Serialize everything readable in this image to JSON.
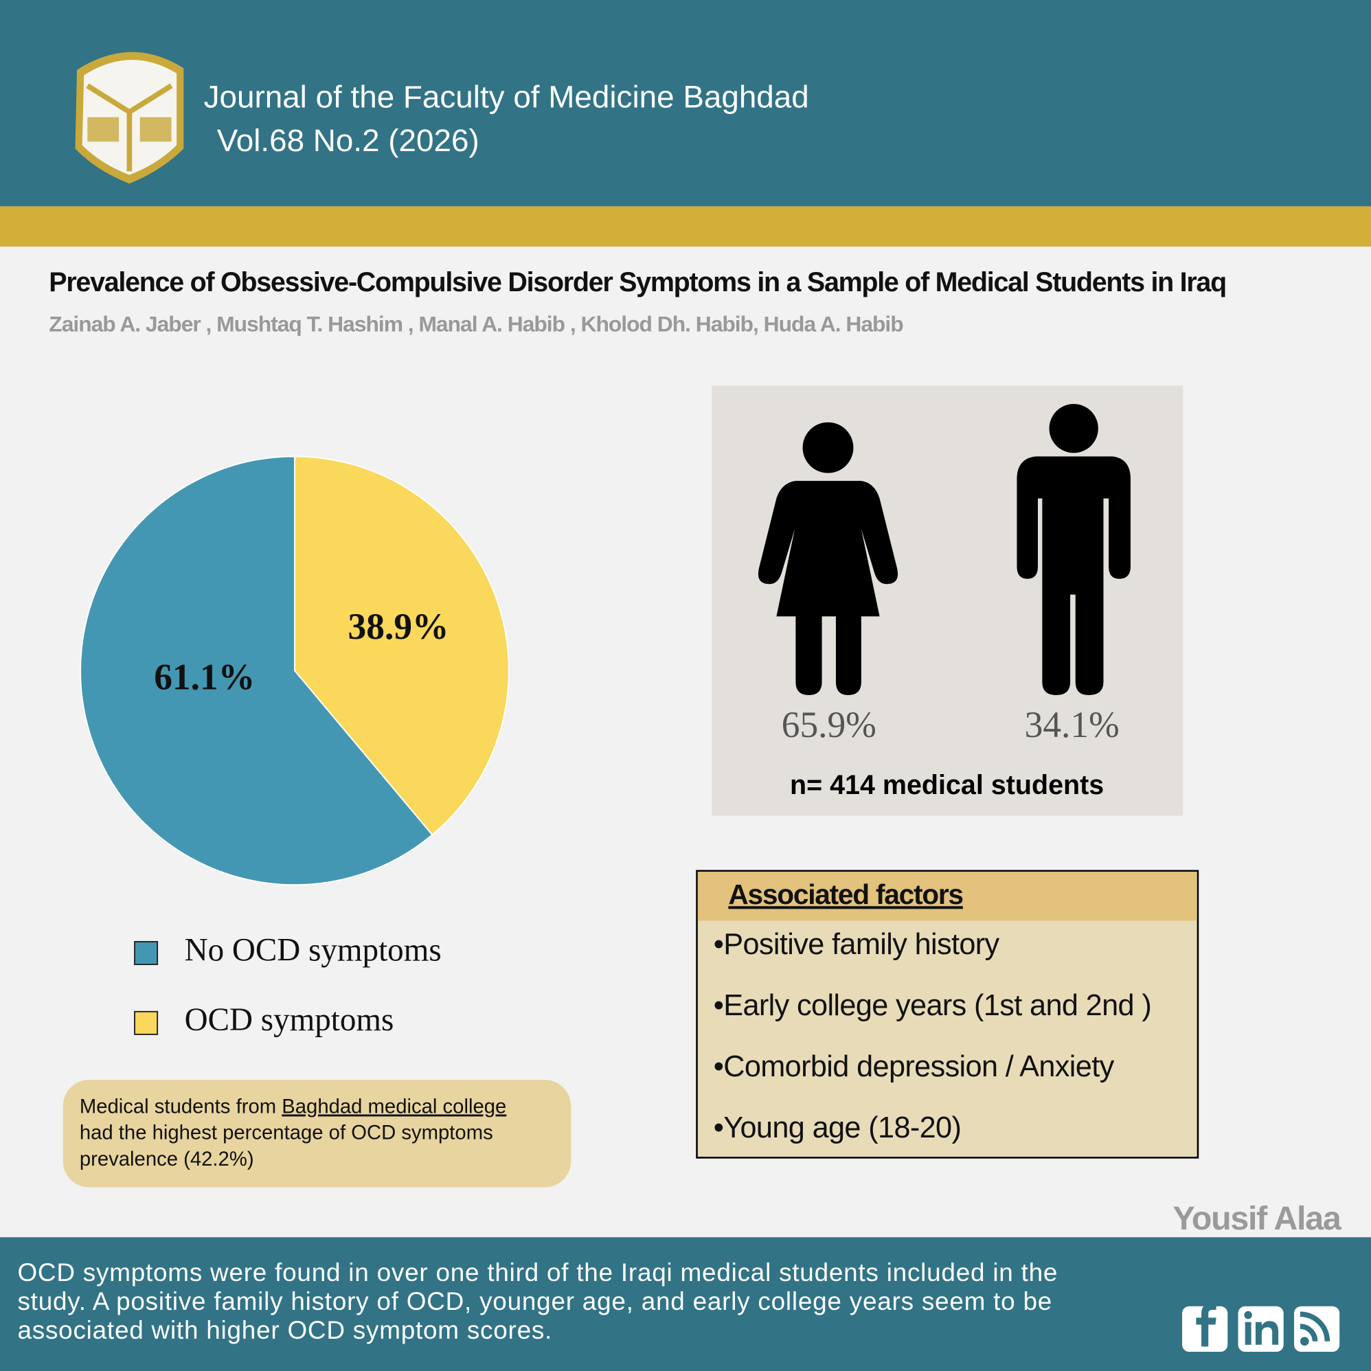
{
  "header": {
    "journal": "Journal of the Faculty of Medicine Baghdad",
    "issue": "Vol.68 No.2 (2026)"
  },
  "title": "Prevalence of Obsessive-Compulsive Disorder Symptoms in a Sample of Medical Students in Iraq",
  "authors": "Zainab A. Jaber  , Mushtaq T. Hashim  , Manal A. Habib , Kholod Dh. Habib, Huda A. Habib",
  "chart_data": {
    "type": "pie",
    "categories": [
      "No OCD symptoms",
      "OCD symptoms"
    ],
    "values": [
      61.1,
      38.9
    ],
    "value_labels": [
      "61.1%",
      "38.9%"
    ],
    "colors": [
      "#4497b2",
      "#f9d85b"
    ]
  },
  "gender": {
    "female": "65.9%",
    "male": "34.1%",
    "sample": "n= 414 medical students"
  },
  "note": {
    "line1": "Medical students from",
    "link": "Baghdad medical college",
    "line2": "had the highest percentage of OCD symptoms",
    "line3": "prevalence (42.2%)"
  },
  "factors": {
    "title": "Associated factors",
    "items": [
      "•Positive family history",
      "•Early college years (1st and 2nd )",
      "•Comorbid depression / Anxiety",
      "•Young age (18-20)"
    ]
  },
  "credit": "Yousif Alaa",
  "conclusion": [
    "OCD symptoms were found in over one third of the Iraqi medical students included in the",
    "study. A positive family history of OCD, younger age, and early college years seem to be",
    "associated with higher OCD symptom scores."
  ]
}
